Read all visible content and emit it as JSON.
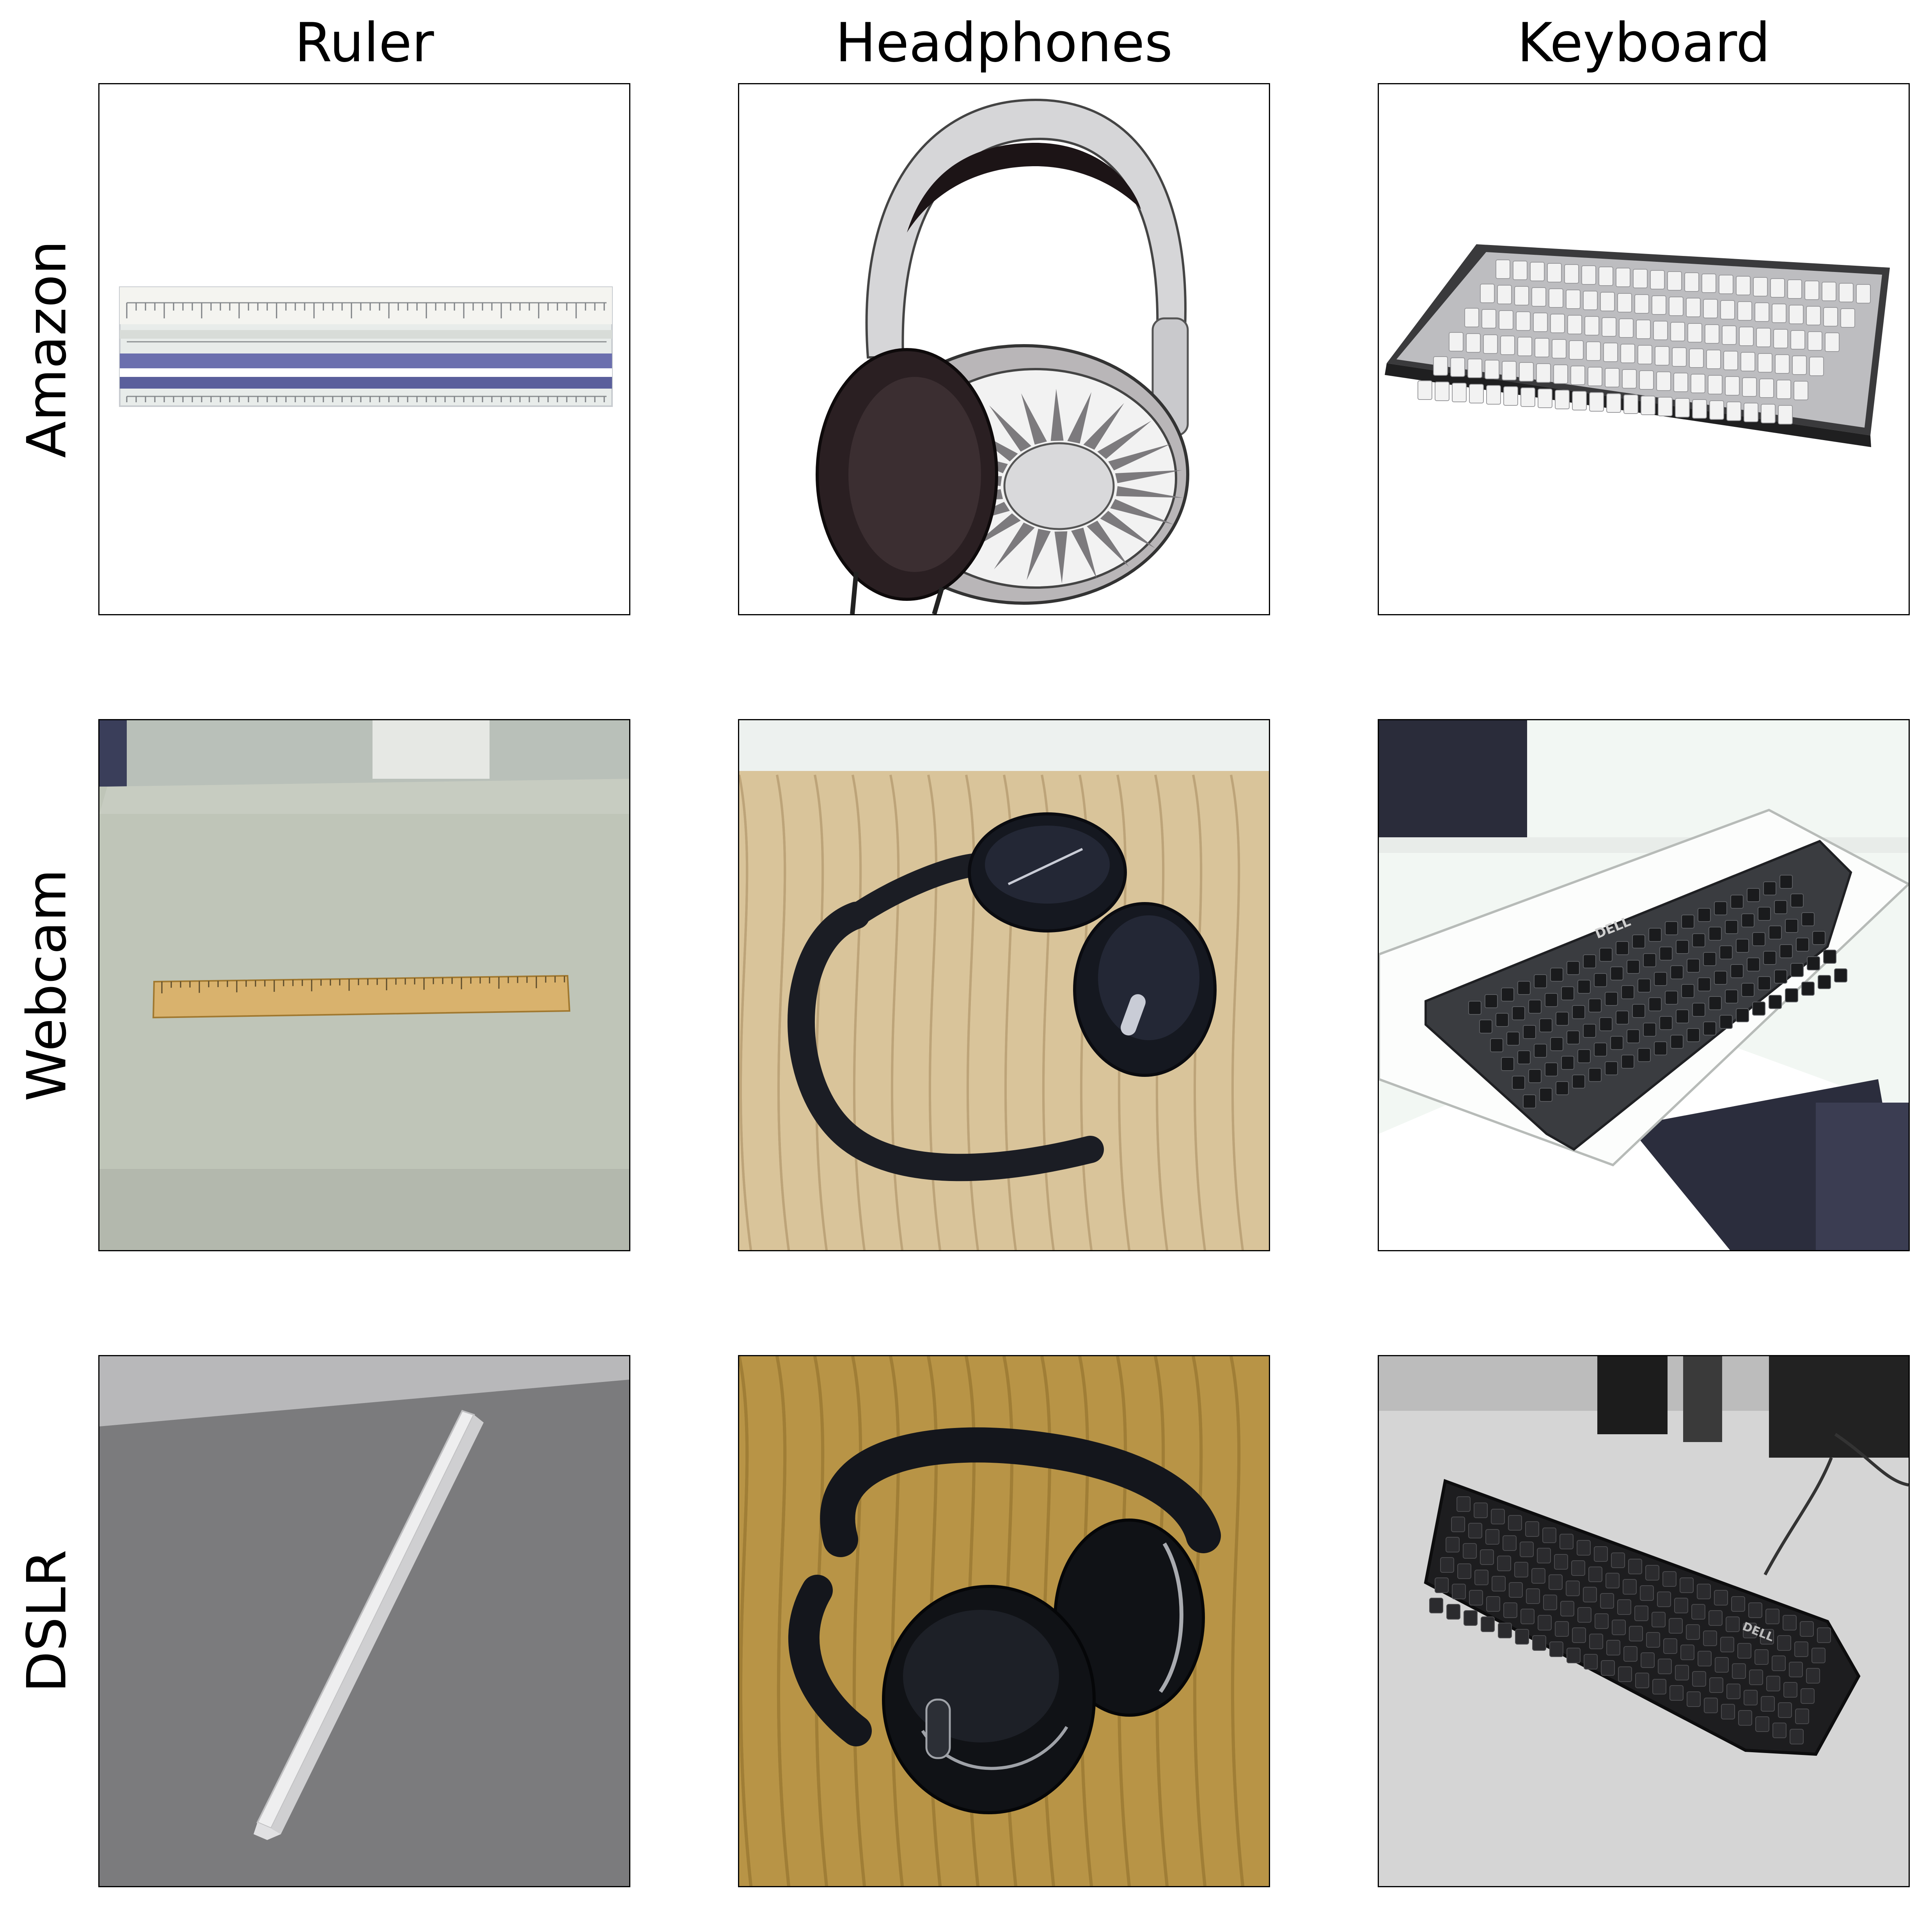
{
  "columns": [
    "Ruler",
    "Headphones",
    "Keyboard"
  ],
  "rows": [
    "Amazon",
    "Webcam",
    "DSLR"
  ],
  "brand_marks": {
    "webcam_keyboard": "DELL",
    "dslr_keyboard": "DELL"
  },
  "colors": {
    "amazon_background": "#ffffff",
    "webcam_ruler_background": "#bfc5b8",
    "webcam_desk_wood": "#d9c49a",
    "webcam_keyboard_background": "#f2f7f3",
    "dslr_ruler_background": "#7b7b7d",
    "dslr_desk_wood": "#b89446",
    "dslr_keyboard_background": "#d5d5d5"
  }
}
